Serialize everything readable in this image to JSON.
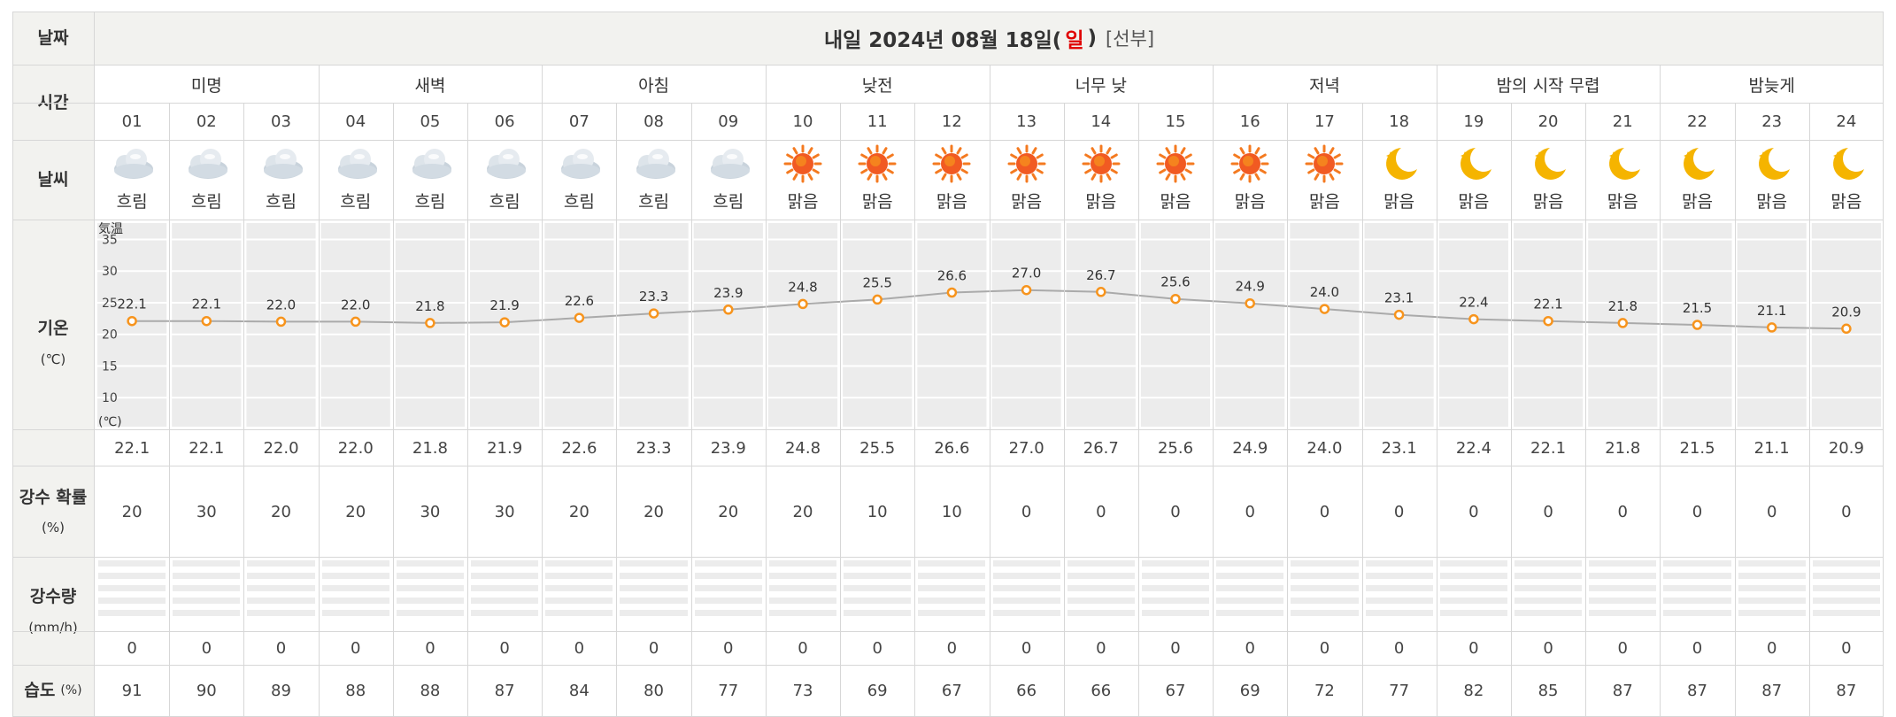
{
  "header": {
    "date_label": "날짜",
    "title_prefix": "내일 2024년 08월 18일(",
    "title_day": "일",
    "title_close": ")",
    "title_note": "[선부]"
  },
  "rows": {
    "time_label": "시간",
    "weather_label": "날씨",
    "temp_label": "기온",
    "temp_unit": "(℃)",
    "rain_prob_label": "강수 확률",
    "rain_prob_unit": "(%)",
    "rain_amt_label": "강수량",
    "rain_amt_unit": "(mm/h)",
    "humidity_label": "습도",
    "humidity_unit": "(%)"
  },
  "periods": [
    "미명",
    "새벽",
    "아침",
    "낮전",
    "너무 낮",
    "저녁",
    "밤의 시작 무렵",
    "밤늦게"
  ],
  "hours": [
    "01",
    "02",
    "03",
    "04",
    "05",
    "06",
    "07",
    "08",
    "09",
    "10",
    "11",
    "12",
    "13",
    "14",
    "15",
    "16",
    "17",
    "18",
    "19",
    "20",
    "21",
    "22",
    "23",
    "24"
  ],
  "weather": [
    {
      "icon": "cloud-icon",
      "label": "흐림"
    },
    {
      "icon": "cloud-icon",
      "label": "흐림"
    },
    {
      "icon": "cloud-icon",
      "label": "흐림"
    },
    {
      "icon": "cloud-icon",
      "label": "흐림"
    },
    {
      "icon": "cloud-icon",
      "label": "흐림"
    },
    {
      "icon": "cloud-icon",
      "label": "흐림"
    },
    {
      "icon": "cloud-icon",
      "label": "흐림"
    },
    {
      "icon": "cloud-icon",
      "label": "흐림"
    },
    {
      "icon": "cloud-icon",
      "label": "흐림"
    },
    {
      "icon": "sun-icon",
      "label": "맑음"
    },
    {
      "icon": "sun-icon",
      "label": "맑음"
    },
    {
      "icon": "sun-icon",
      "label": "맑음"
    },
    {
      "icon": "sun-icon",
      "label": "맑음"
    },
    {
      "icon": "sun-icon",
      "label": "맑음"
    },
    {
      "icon": "sun-icon",
      "label": "맑음"
    },
    {
      "icon": "sun-icon",
      "label": "맑음"
    },
    {
      "icon": "sun-icon",
      "label": "맑음"
    },
    {
      "icon": "moon-icon",
      "label": "맑음"
    },
    {
      "icon": "moon-icon",
      "label": "맑음"
    },
    {
      "icon": "moon-icon",
      "label": "맑음"
    },
    {
      "icon": "moon-icon",
      "label": "맑음"
    },
    {
      "icon": "moon-icon",
      "label": "맑음"
    },
    {
      "icon": "moon-icon",
      "label": "맑음"
    },
    {
      "icon": "moon-icon",
      "label": "맑음"
    }
  ],
  "chart_data": {
    "type": "line",
    "title": "",
    "ytitle": "気温",
    "yunit": "(℃)",
    "yticks": [
      35,
      30,
      25,
      20,
      15,
      10
    ],
    "ylim": [
      5,
      38
    ],
    "x": [
      "01",
      "02",
      "03",
      "04",
      "05",
      "06",
      "07",
      "08",
      "09",
      "10",
      "11",
      "12",
      "13",
      "14",
      "15",
      "16",
      "17",
      "18",
      "19",
      "20",
      "21",
      "22",
      "23",
      "24"
    ],
    "values": [
      22.1,
      22.1,
      22.0,
      22.0,
      21.8,
      21.9,
      22.6,
      23.3,
      23.9,
      24.8,
      25.5,
      26.6,
      27.0,
      26.7,
      25.6,
      24.9,
      24.0,
      23.1,
      22.4,
      22.1,
      21.8,
      21.5,
      21.1,
      20.9
    ],
    "labels": [
      "22.1",
      "22.1",
      "22.0",
      "22.0",
      "21.8",
      "21.9",
      "22.6",
      "23.3",
      "23.9",
      "24.8",
      "25.5",
      "26.6",
      "27.0",
      "26.7",
      "25.6",
      "24.9",
      "24.0",
      "23.1",
      "22.4",
      "22.1",
      "21.8",
      "21.5",
      "21.1",
      "20.9"
    ],
    "line_color": "#aaaaaa",
    "marker_color": "#f7941d",
    "grid": true
  },
  "temps": [
    "22.1",
    "22.1",
    "22.0",
    "22.0",
    "21.8",
    "21.9",
    "22.6",
    "23.3",
    "23.9",
    "24.8",
    "25.5",
    "26.6",
    "27.0",
    "26.7",
    "25.6",
    "24.9",
    "24.0",
    "23.1",
    "22.4",
    "22.1",
    "21.8",
    "21.5",
    "21.1",
    "20.9"
  ],
  "rain_prob": [
    "20",
    "30",
    "20",
    "20",
    "30",
    "30",
    "20",
    "20",
    "20",
    "20",
    "10",
    "10",
    "0",
    "0",
    "0",
    "0",
    "0",
    "0",
    "0",
    "0",
    "0",
    "0",
    "0",
    "0"
  ],
  "rain_amt": [
    "0",
    "0",
    "0",
    "0",
    "0",
    "0",
    "0",
    "0",
    "0",
    "0",
    "0",
    "0",
    "0",
    "0",
    "0",
    "0",
    "0",
    "0",
    "0",
    "0",
    "0",
    "0",
    "0",
    "0"
  ],
  "humidity": [
    "91",
    "90",
    "89",
    "88",
    "88",
    "87",
    "84",
    "80",
    "77",
    "73",
    "69",
    "67",
    "66",
    "66",
    "67",
    "69",
    "72",
    "77",
    "82",
    "85",
    "87",
    "87",
    "87",
    "87"
  ],
  "colors": {
    "sun": "#f47a20",
    "moon": "#f5b400",
    "cloud": "#b9c6d3",
    "marker": "#f7941d",
    "header_bg": "#f2f2ef",
    "red": "#e00000"
  }
}
